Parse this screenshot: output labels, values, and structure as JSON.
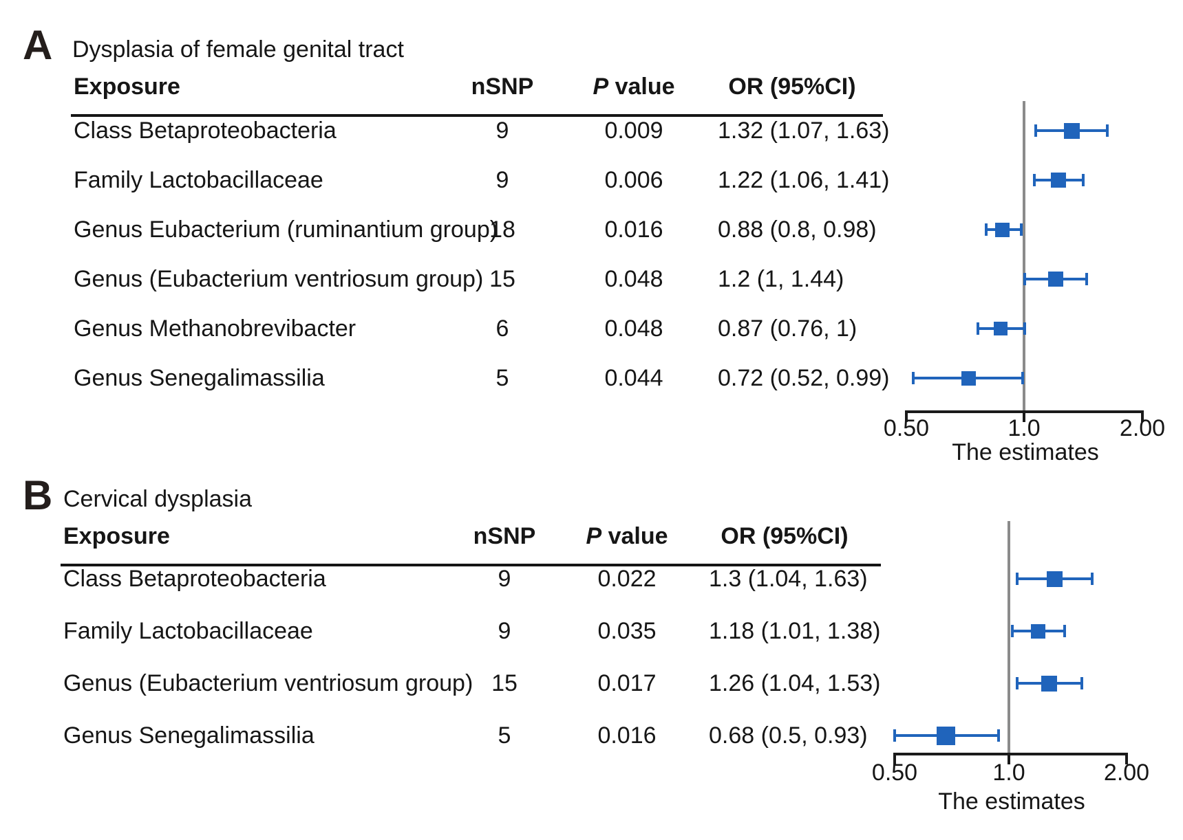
{
  "headers": {
    "exposure": "Exposure",
    "nsnp": "nSNP",
    "p_italic": "P",
    "p_rest": " value",
    "or_ci": "OR (95%CI)"
  },
  "colors": {
    "marker": "#2064BB",
    "reference_line": "#8B8B8B",
    "axis": "#1A1A1A",
    "text": "#161616"
  },
  "chart_data": [
    {
      "type": "scatter",
      "subtype": "forest",
      "panel_label": "A",
      "title": "Dysplasia of female genital tract",
      "xlabel": "The estimates",
      "x_scale": "log",
      "xlim": [
        0.5,
        2.0
      ],
      "x_ticks": [
        0.5,
        1.0,
        2.0
      ],
      "x_tick_labels": [
        "0.50",
        "1.0",
        "2.00"
      ],
      "reference_line": 1.0,
      "columns": [
        "Exposure",
        "nSNP",
        "P value",
        "OR (95%CI)"
      ],
      "rows": [
        {
          "exposure": "Class Betaproteobacteria",
          "nsnp": "9",
          "p_value": "0.009",
          "or_ci_text": "1.32 (1.07, 1.63)",
          "or": 1.32,
          "ci_lower": 1.07,
          "ci_upper": 1.63,
          "marker_size": 23
        },
        {
          "exposure": "Family Lactobacillaceae",
          "nsnp": "9",
          "p_value": "0.006",
          "or_ci_text": "1.22 (1.06, 1.41)",
          "or": 1.22,
          "ci_lower": 1.06,
          "ci_upper": 1.41,
          "marker_size": 22
        },
        {
          "exposure": "Genus Eubacterium (ruminantium group)",
          "nsnp": "18",
          "p_value": "0.016",
          "or_ci_text": "0.88 (0.8, 0.98)",
          "or": 0.88,
          "ci_lower": 0.8,
          "ci_upper": 0.98,
          "marker_size": 21
        },
        {
          "exposure": "Genus (Eubacterium ventriosum group)",
          "nsnp": "15",
          "p_value": "0.048",
          "or_ci_text": "1.2 (1, 1.44)",
          "or": 1.2,
          "ci_lower": 1.0,
          "ci_upper": 1.44,
          "marker_size": 22
        },
        {
          "exposure": "Genus Methanobrevibacter",
          "nsnp": "6",
          "p_value": "0.048",
          "or_ci_text": "0.87 (0.76, 1)",
          "or": 0.87,
          "ci_lower": 0.76,
          "ci_upper": 1.0,
          "marker_size": 20
        },
        {
          "exposure": "Genus Senegalimassilia",
          "nsnp": "5",
          "p_value": "0.044",
          "or_ci_text": "0.72 (0.52, 0.99)",
          "or": 0.72,
          "ci_lower": 0.52,
          "ci_upper": 0.99,
          "marker_size": 21
        }
      ]
    },
    {
      "type": "scatter",
      "subtype": "forest",
      "panel_label": "B",
      "title": "Cervical dysplasia",
      "xlabel": "The estimates",
      "x_scale": "log",
      "xlim": [
        0.5,
        2.0
      ],
      "x_ticks": [
        0.5,
        1.0,
        2.0
      ],
      "x_tick_labels": [
        "0.50",
        "1.0",
        "2.00"
      ],
      "reference_line": 1.0,
      "columns": [
        "Exposure",
        "nSNP",
        "P value",
        "OR (95%CI)"
      ],
      "rows": [
        {
          "exposure": "Class Betaproteobacteria",
          "nsnp": "9",
          "p_value": "0.022",
          "or_ci_text": "1.3 (1.04, 1.63)",
          "or": 1.3,
          "ci_lower": 1.04,
          "ci_upper": 1.63,
          "marker_size": 23
        },
        {
          "exposure": "Family Lactobacillaceae",
          "nsnp": "9",
          "p_value": "0.035",
          "or_ci_text": "1.18 (1.01, 1.38)",
          "or": 1.18,
          "ci_lower": 1.01,
          "ci_upper": 1.38,
          "marker_size": 21
        },
        {
          "exposure": "Genus (Eubacterium ventriosum group)",
          "nsnp": "15",
          "p_value": "0.017",
          "or_ci_text": "1.26 (1.04, 1.53)",
          "or": 1.26,
          "ci_lower": 1.04,
          "ci_upper": 1.53,
          "marker_size": 23
        },
        {
          "exposure": "Genus Senegalimassilia",
          "nsnp": "5",
          "p_value": "0.016",
          "or_ci_text": "0.68 (0.5, 0.93)",
          "or": 0.68,
          "ci_lower": 0.5,
          "ci_upper": 0.93,
          "marker_size": 27
        }
      ]
    }
  ]
}
